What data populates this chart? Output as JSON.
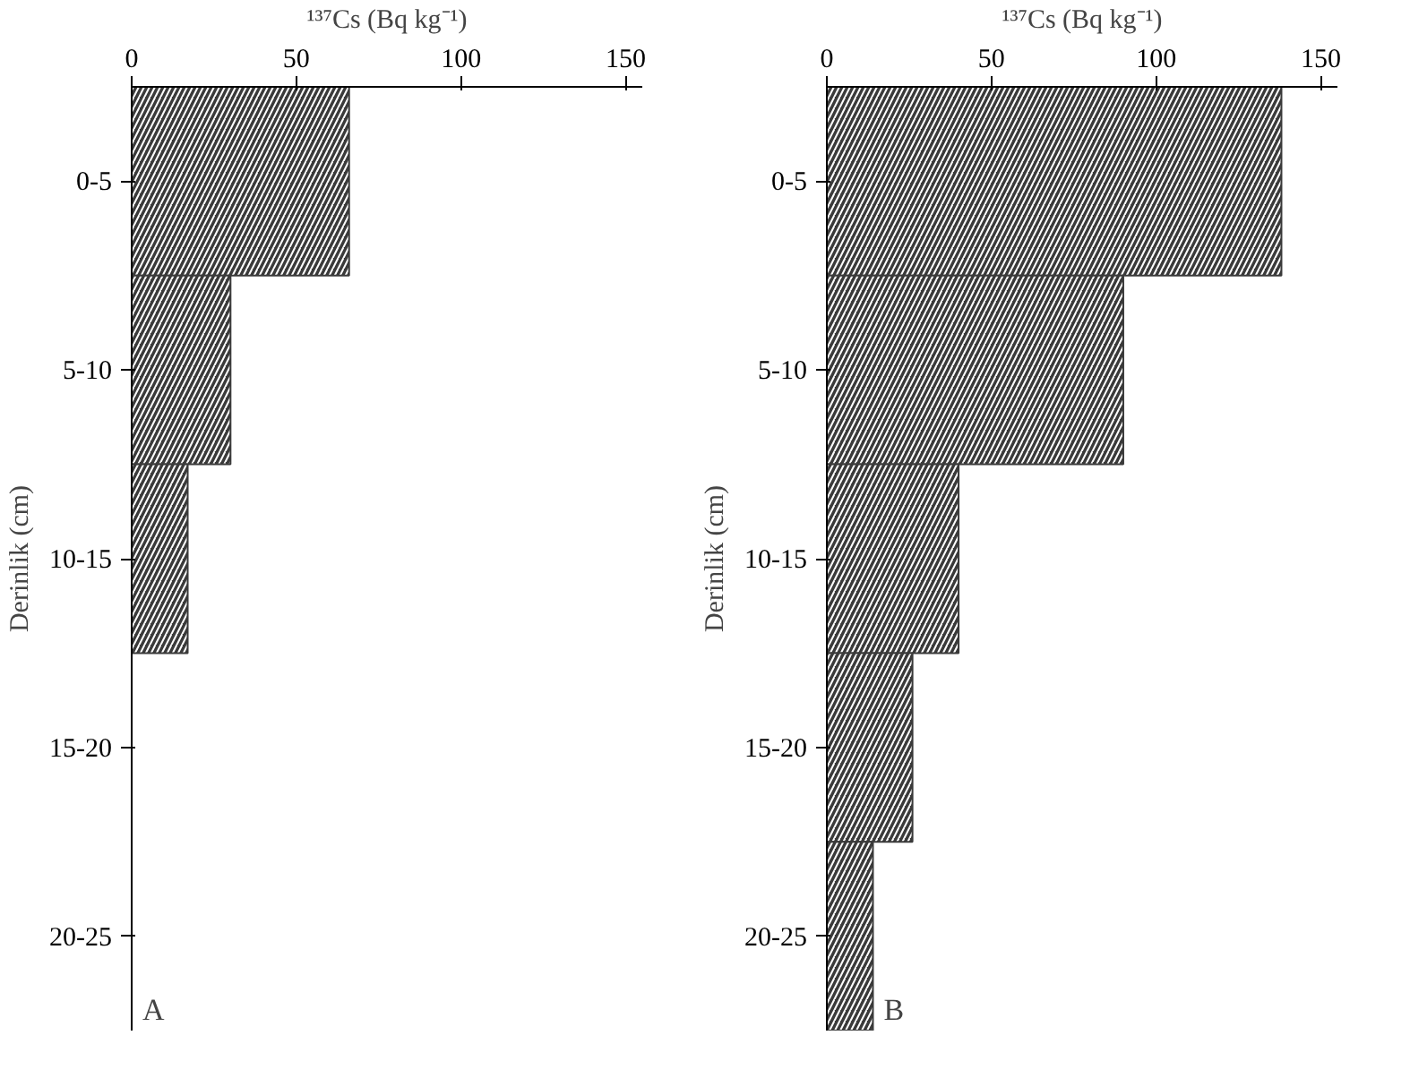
{
  "chart_data": [
    {
      "type": "bar",
      "orientation": "horizontal",
      "xlabel": "¹³⁷Cs (Bq kg⁻¹)",
      "ylabel": "Derinlik (cm)",
      "categories": [
        "0-5",
        "5-10",
        "10-15",
        "15-20",
        "20-25"
      ],
      "values": [
        66,
        30,
        17,
        null,
        null
      ],
      "color": "#3a3a3a",
      "xlim": [
        0,
        155
      ],
      "xticks": [
        0,
        50,
        100,
        150
      ],
      "grid": false,
      "annotations": [
        "A"
      ]
    },
    {
      "type": "bar",
      "orientation": "horizontal",
      "xlabel": "¹³⁷Cs (Bq kg⁻¹)",
      "ylabel": "Derinlik (cm)",
      "categories": [
        "0-5",
        "5-10",
        "10-15",
        "15-20",
        "20-25"
      ],
      "values": [
        138,
        90,
        40,
        26,
        14
      ],
      "color": "#3a3a3a",
      "xlim": [
        0,
        155
      ],
      "xticks": [
        0,
        50,
        100,
        150
      ],
      "grid": false,
      "annotations": [
        "B"
      ]
    }
  ]
}
